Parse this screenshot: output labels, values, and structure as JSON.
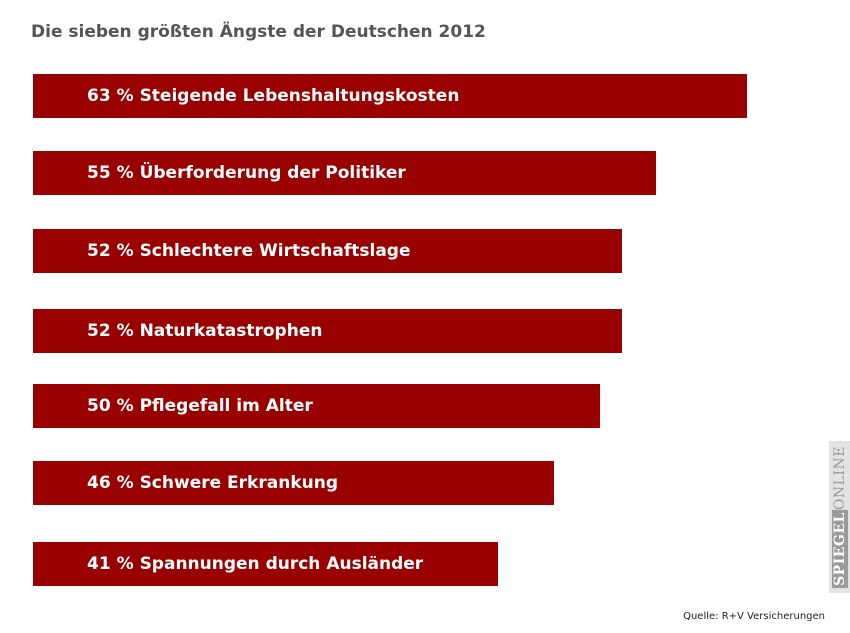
{
  "title": "Die sieben größten Ängste der Deutschen 2012",
  "source": "Quelle: R+V Versicherungen",
  "brand": {
    "part1": "SPIEGEL",
    "part2": "ONLINE"
  },
  "colors": {
    "bar": "#990000",
    "bar_text": "#ffffff",
    "title": "#555555"
  },
  "chart_data": {
    "type": "bar",
    "orientation": "horizontal",
    "title": "Die sieben größten Ängste der Deutschen 2012",
    "unit": "%",
    "grid": false,
    "categories": [
      "Steigende Lebenshaltungskosten",
      "Überforderung der Politiker",
      "Schlechtere Wirtschaftslage",
      "Naturkatastrophen",
      "Pflegefall im Alter",
      "Schwere Erkrankung",
      "Spannungen durch Ausländer"
    ],
    "values": [
      63,
      55,
      52,
      52,
      50,
      46,
      41
    ]
  }
}
